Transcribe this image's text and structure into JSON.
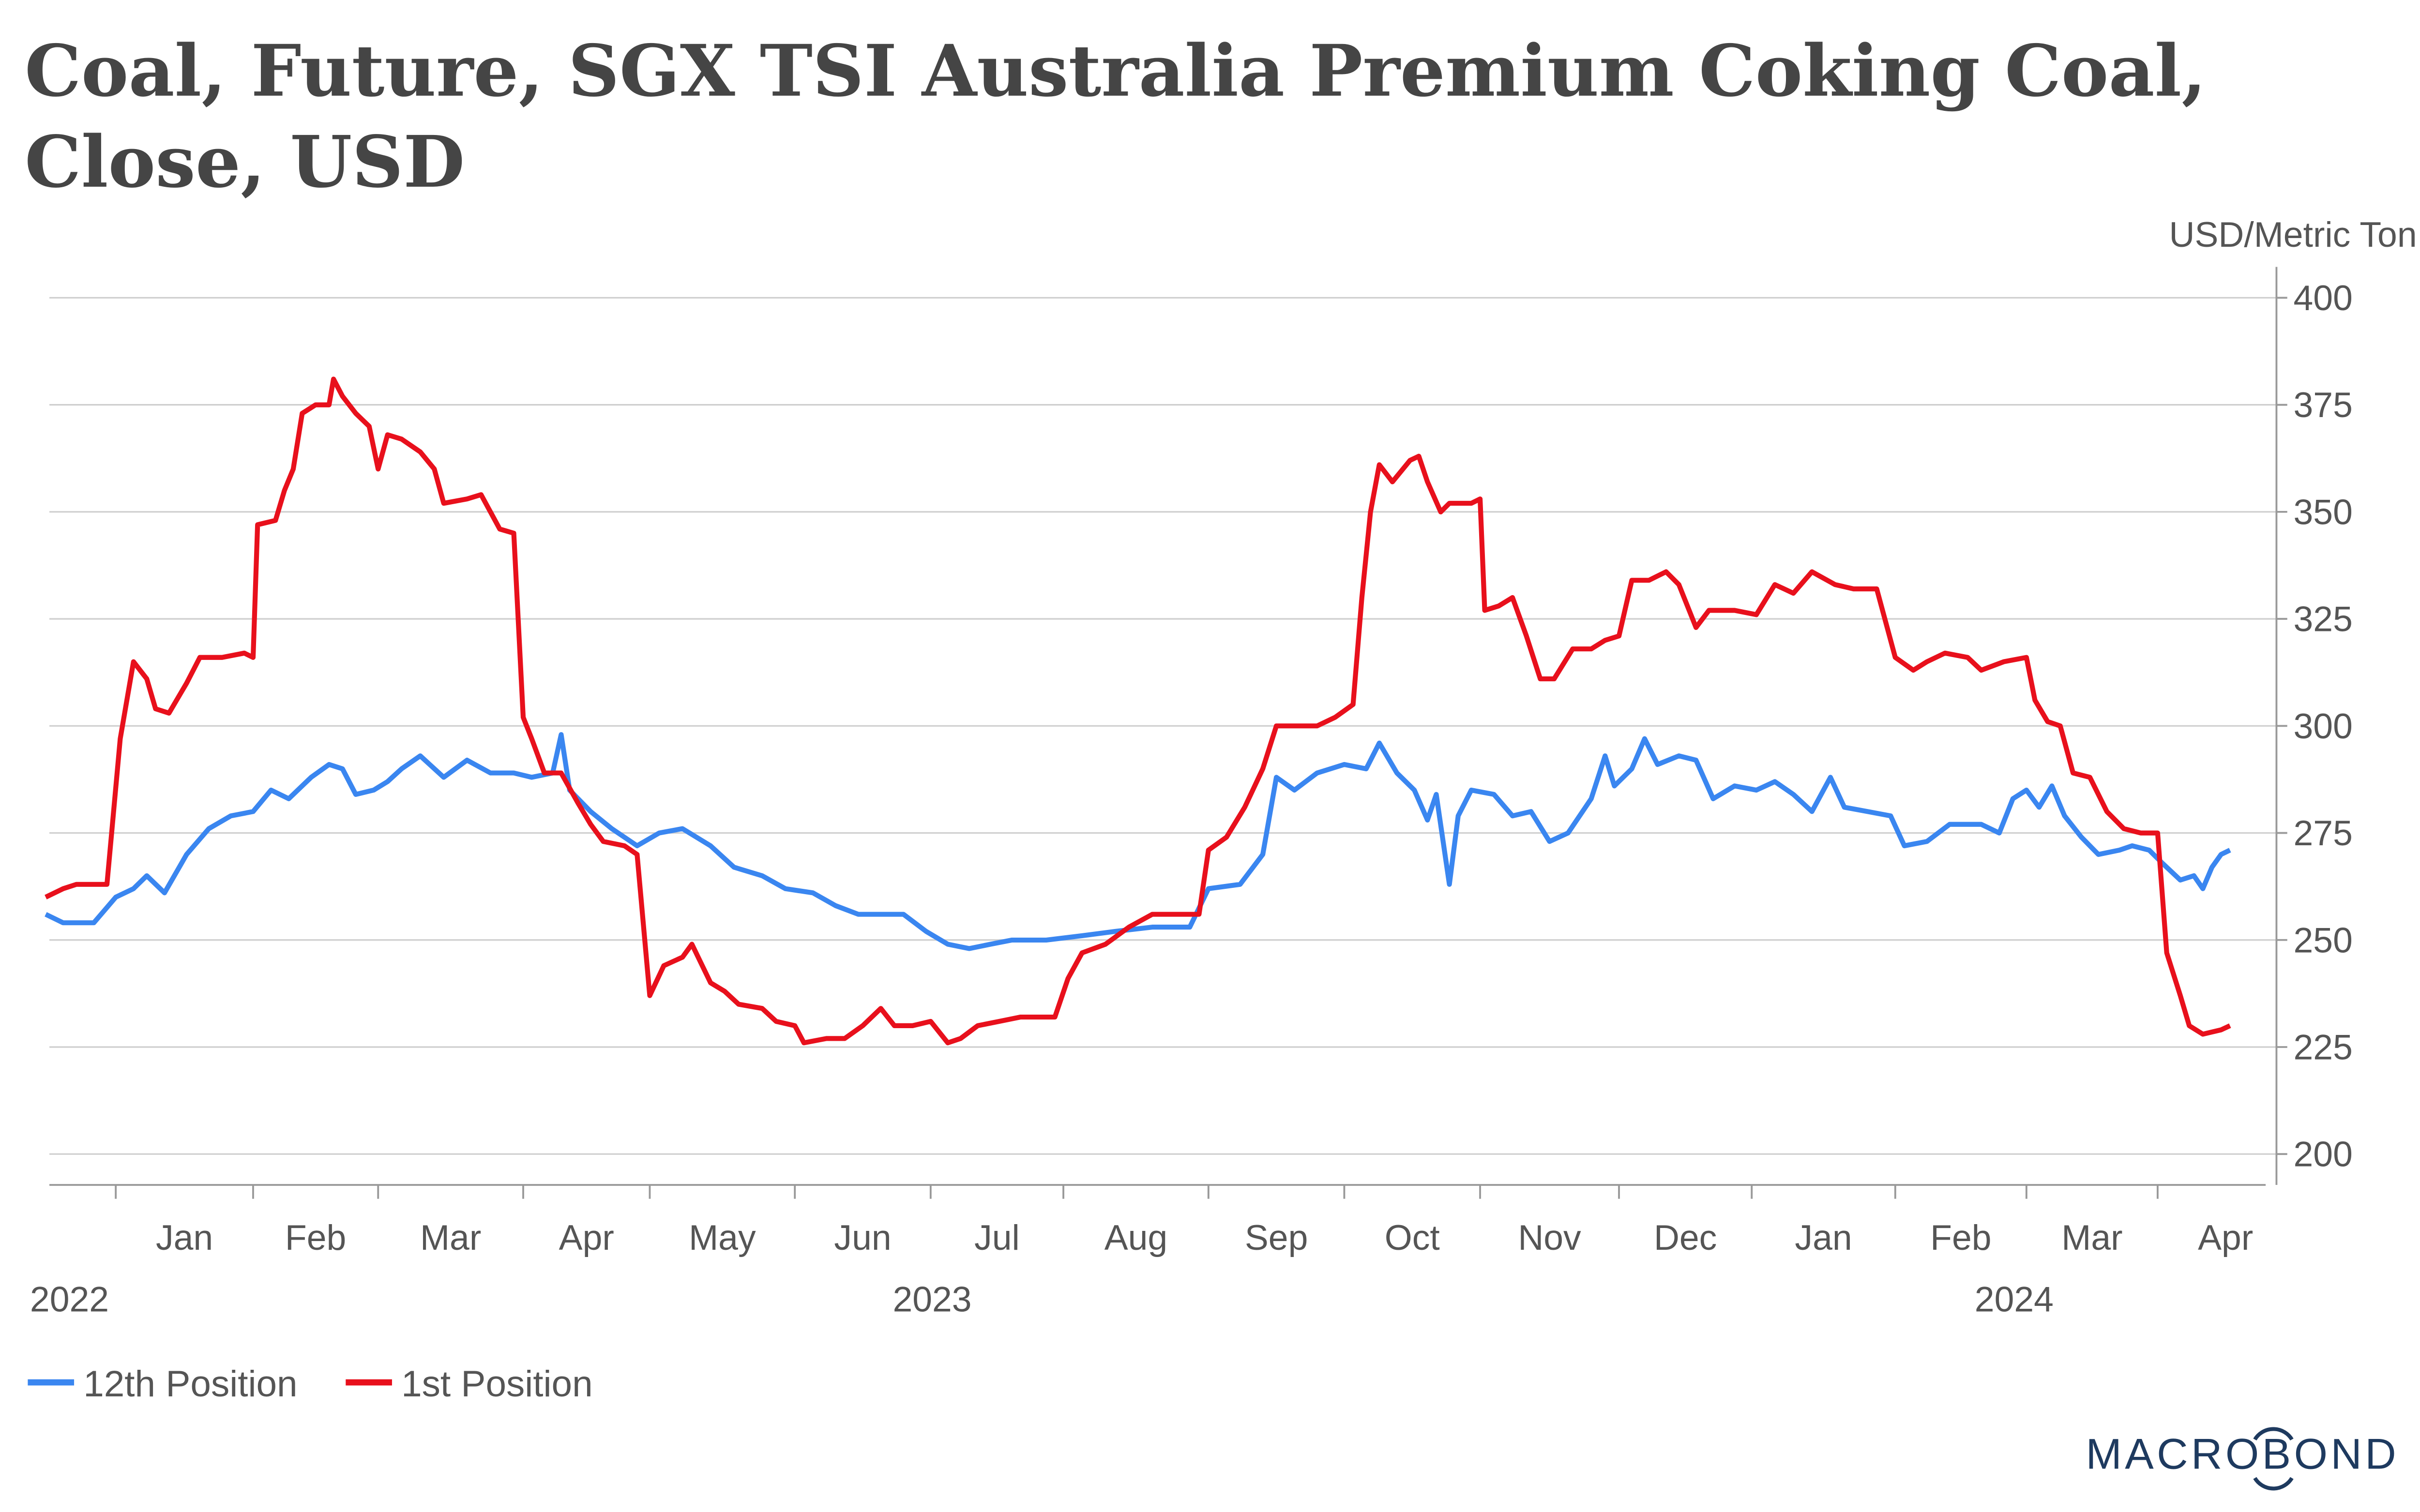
{
  "title_line1": "Coal, Future, SGX TSI Australia Premium Coking Coal,",
  "title_line2": "Close, USD",
  "logo_text": "MACROBOND",
  "chart_data": {
    "type": "line",
    "title": "Coal, Future, SGX TSI Australia Premium Coking Coal, Close, USD",
    "ylabel": "USD/Metric Ton",
    "ylim": [
      200,
      400
    ],
    "yticks": [
      200,
      225,
      250,
      275,
      300,
      325,
      350,
      375,
      400
    ],
    "x_month_labels": [
      "Jan",
      "Feb",
      "Mar",
      "Apr",
      "May",
      "Jun",
      "Jul",
      "Aug",
      "Sep",
      "Oct",
      "Nov",
      "Dec",
      "Jan",
      "Feb",
      "Mar",
      "Apr"
    ],
    "x_year_labels": [
      "2022",
      "2023",
      "2024"
    ],
    "grid": true,
    "legend_position": "bottom-left",
    "series": [
      {
        "name": "12th Position",
        "color": "#3a86f0",
        "points": [
          [
            "2022-12-16",
            256
          ],
          [
            "2022-12-20",
            254
          ],
          [
            "2022-12-27",
            254
          ],
          [
            "2023-01-01",
            260
          ],
          [
            "2023-01-05",
            262
          ],
          [
            "2023-01-08",
            265
          ],
          [
            "2023-01-12",
            261
          ],
          [
            "2023-01-17",
            270
          ],
          [
            "2023-01-22",
            276
          ],
          [
            "2023-01-27",
            279
          ],
          [
            "2023-02-01",
            280
          ],
          [
            "2023-02-05",
            285
          ],
          [
            "2023-02-09",
            283
          ],
          [
            "2023-02-14",
            288
          ],
          [
            "2023-02-18",
            291
          ],
          [
            "2023-02-21",
            290
          ],
          [
            "2023-02-24",
            284
          ],
          [
            "2023-02-28",
            285
          ],
          [
            "2023-03-03",
            287
          ],
          [
            "2023-03-06",
            290
          ],
          [
            "2023-03-10",
            293
          ],
          [
            "2023-03-15",
            288
          ],
          [
            "2023-03-20",
            292
          ],
          [
            "2023-03-25",
            289
          ],
          [
            "2023-03-30",
            289
          ],
          [
            "2023-04-03",
            288
          ],
          [
            "2023-04-08",
            289
          ],
          [
            "2023-04-10",
            298
          ],
          [
            "2023-04-12",
            285
          ],
          [
            "2023-04-17",
            280
          ],
          [
            "2023-04-22",
            276
          ],
          [
            "2023-04-28",
            272
          ],
          [
            "2023-05-03",
            275
          ],
          [
            "2023-05-08",
            276
          ],
          [
            "2023-05-14",
            272
          ],
          [
            "2023-05-19",
            267
          ],
          [
            "2023-05-25",
            265
          ],
          [
            "2023-05-30",
            262
          ],
          [
            "2023-06-05",
            261
          ],
          [
            "2023-06-10",
            258
          ],
          [
            "2023-06-15",
            256
          ],
          [
            "2023-06-25",
            256
          ],
          [
            "2023-06-30",
            252
          ],
          [
            "2023-07-05",
            249
          ],
          [
            "2023-07-10",
            248
          ],
          [
            "2023-07-15",
            249
          ],
          [
            "2023-07-20",
            250
          ],
          [
            "2023-07-28",
            250
          ],
          [
            "2023-08-05",
            251
          ],
          [
            "2023-08-12",
            252
          ],
          [
            "2023-08-20",
            253
          ],
          [
            "2023-08-28",
            253
          ],
          [
            "2023-09-01",
            262
          ],
          [
            "2023-09-08",
            263
          ],
          [
            "2023-09-13",
            270
          ],
          [
            "2023-09-16",
            288
          ],
          [
            "2023-09-20",
            285
          ],
          [
            "2023-09-25",
            289
          ],
          [
            "2023-10-01",
            291
          ],
          [
            "2023-10-06",
            290
          ],
          [
            "2023-10-09",
            296
          ],
          [
            "2023-10-13",
            289
          ],
          [
            "2023-10-17",
            285
          ],
          [
            "2023-10-20",
            278
          ],
          [
            "2023-10-22",
            284
          ],
          [
            "2023-10-25",
            263
          ],
          [
            "2023-10-27",
            279
          ],
          [
            "2023-10-30",
            285
          ],
          [
            "2023-11-04",
            284
          ],
          [
            "2023-11-08",
            279
          ],
          [
            "2023-11-12",
            280
          ],
          [
            "2023-11-16",
            273
          ],
          [
            "2023-11-20",
            275
          ],
          [
            "2023-11-25",
            283
          ],
          [
            "2023-11-28",
            293
          ],
          [
            "2023-11-30",
            286
          ],
          [
            "2023-12-04",
            290
          ],
          [
            "2023-12-07",
            297
          ],
          [
            "2023-12-10",
            291
          ],
          [
            "2023-12-15",
            293
          ],
          [
            "2023-12-19",
            292
          ],
          [
            "2023-12-23",
            283
          ],
          [
            "2023-12-28",
            286
          ],
          [
            "2024-01-02",
            285
          ],
          [
            "2024-01-06",
            287
          ],
          [
            "2024-01-10",
            284
          ],
          [
            "2024-01-14",
            280
          ],
          [
            "2024-01-18",
            288
          ],
          [
            "2024-01-21",
            281
          ],
          [
            "2024-01-26",
            280
          ],
          [
            "2024-01-31",
            279
          ],
          [
            "2024-02-03",
            272
          ],
          [
            "2024-02-08",
            273
          ],
          [
            "2024-02-13",
            277
          ],
          [
            "2024-02-20",
            277
          ],
          [
            "2024-02-24",
            275
          ],
          [
            "2024-02-27",
            283
          ],
          [
            "2024-03-01",
            285
          ],
          [
            "2024-03-04",
            281
          ],
          [
            "2024-03-07",
            286
          ],
          [
            "2024-03-10",
            279
          ],
          [
            "2024-03-14",
            274
          ],
          [
            "2024-03-18",
            270
          ],
          [
            "2024-03-23",
            271
          ],
          [
            "2024-03-26",
            272
          ],
          [
            "2024-03-30",
            271
          ],
          [
            "2024-04-02",
            268
          ],
          [
            "2024-04-06",
            264
          ],
          [
            "2024-04-09",
            265
          ],
          [
            "2024-04-11",
            262
          ],
          [
            "2024-04-13",
            267
          ],
          [
            "2024-04-15",
            270
          ],
          [
            "2024-04-17",
            271
          ]
        ]
      },
      {
        "name": "1st Position",
        "color": "#e8101c",
        "points": [
          [
            "2022-12-16",
            260
          ],
          [
            "2022-12-20",
            262
          ],
          [
            "2022-12-23",
            263
          ],
          [
            "2022-12-30",
            263
          ],
          [
            "2023-01-02",
            297
          ],
          [
            "2023-01-05",
            315
          ],
          [
            "2023-01-08",
            311
          ],
          [
            "2023-01-10",
            304
          ],
          [
            "2023-01-13",
            303
          ],
          [
            "2023-01-17",
            310
          ],
          [
            "2023-01-20",
            316
          ],
          [
            "2023-01-25",
            316
          ],
          [
            "2023-01-30",
            317
          ],
          [
            "2023-02-01",
            316
          ],
          [
            "2023-02-02",
            347
          ],
          [
            "2023-02-06",
            348
          ],
          [
            "2023-02-08",
            355
          ],
          [
            "2023-02-10",
            360
          ],
          [
            "2023-02-12",
            373
          ],
          [
            "2023-02-15",
            375
          ],
          [
            "2023-02-18",
            375
          ],
          [
            "2023-02-19",
            381
          ],
          [
            "2023-02-21",
            377
          ],
          [
            "2023-02-24",
            373
          ],
          [
            "2023-02-27",
            370
          ],
          [
            "2023-03-01",
            360
          ],
          [
            "2023-03-03",
            368
          ],
          [
            "2023-03-06",
            367
          ],
          [
            "2023-03-10",
            364
          ],
          [
            "2023-03-13",
            360
          ],
          [
            "2023-03-15",
            352
          ],
          [
            "2023-03-20",
            353
          ],
          [
            "2023-03-23",
            354
          ],
          [
            "2023-03-27",
            346
          ],
          [
            "2023-03-30",
            345
          ],
          [
            "2023-04-01",
            302
          ],
          [
            "2023-04-03",
            297
          ],
          [
            "2023-04-06",
            289
          ],
          [
            "2023-04-10",
            289
          ],
          [
            "2023-04-14",
            282
          ],
          [
            "2023-04-17",
            277
          ],
          [
            "2023-04-20",
            273
          ],
          [
            "2023-04-25",
            272
          ],
          [
            "2023-04-28",
            270
          ],
          [
            "2023-05-01",
            237
          ],
          [
            "2023-05-04",
            244
          ],
          [
            "2023-05-08",
            246
          ],
          [
            "2023-05-10",
            249
          ],
          [
            "2023-05-14",
            240
          ],
          [
            "2023-05-17",
            238
          ],
          [
            "2023-05-20",
            235
          ],
          [
            "2023-05-25",
            234
          ],
          [
            "2023-05-28",
            231
          ],
          [
            "2023-06-01",
            230
          ],
          [
            "2023-06-03",
            226
          ],
          [
            "2023-06-08",
            227
          ],
          [
            "2023-06-12",
            227
          ],
          [
            "2023-06-16",
            230
          ],
          [
            "2023-06-20",
            234
          ],
          [
            "2023-06-23",
            230
          ],
          [
            "2023-06-27",
            230
          ],
          [
            "2023-07-01",
            231
          ],
          [
            "2023-07-05",
            226
          ],
          [
            "2023-07-08",
            227
          ],
          [
            "2023-07-12",
            230
          ],
          [
            "2023-07-17",
            231
          ],
          [
            "2023-07-22",
            232
          ],
          [
            "2023-07-30",
            232
          ],
          [
            "2023-08-02",
            241
          ],
          [
            "2023-08-05",
            247
          ],
          [
            "2023-08-10",
            249
          ],
          [
            "2023-08-15",
            253
          ],
          [
            "2023-08-20",
            256
          ],
          [
            "2023-08-25",
            256
          ],
          [
            "2023-08-30",
            256
          ],
          [
            "2023-09-01",
            271
          ],
          [
            "2023-09-05",
            274
          ],
          [
            "2023-09-09",
            281
          ],
          [
            "2023-09-13",
            290
          ],
          [
            "2023-09-16",
            300
          ],
          [
            "2023-09-20",
            300
          ],
          [
            "2023-09-25",
            300
          ],
          [
            "2023-09-29",
            302
          ],
          [
            "2023-10-03",
            305
          ],
          [
            "2023-10-05",
            330
          ],
          [
            "2023-10-07",
            350
          ],
          [
            "2023-10-09",
            361
          ],
          [
            "2023-10-12",
            357
          ],
          [
            "2023-10-16",
            362
          ],
          [
            "2023-10-18",
            363
          ],
          [
            "2023-10-20",
            357
          ],
          [
            "2023-10-23",
            350
          ],
          [
            "2023-10-25",
            352
          ],
          [
            "2023-10-30",
            352
          ],
          [
            "2023-11-01",
            353
          ],
          [
            "2023-11-02",
            327
          ],
          [
            "2023-11-05",
            328
          ],
          [
            "2023-11-08",
            330
          ],
          [
            "2023-11-11",
            321
          ],
          [
            "2023-11-14",
            311
          ],
          [
            "2023-11-17",
            311
          ],
          [
            "2023-11-21",
            318
          ],
          [
            "2023-11-25",
            318
          ],
          [
            "2023-11-28",
            320
          ],
          [
            "2023-12-01",
            321
          ],
          [
            "2023-12-04",
            334
          ],
          [
            "2023-12-08",
            334
          ],
          [
            "2023-12-12",
            336
          ],
          [
            "2023-12-15",
            333
          ],
          [
            "2023-12-19",
            323
          ],
          [
            "2023-12-22",
            327
          ],
          [
            "2023-12-28",
            327
          ],
          [
            "2024-01-02",
            326
          ],
          [
            "2024-01-06",
            333
          ],
          [
            "2024-01-10",
            331
          ],
          [
            "2024-01-14",
            336
          ],
          [
            "2024-01-19",
            333
          ],
          [
            "2024-01-23",
            332
          ],
          [
            "2024-01-28",
            332
          ],
          [
            "2024-02-01",
            316
          ],
          [
            "2024-02-05",
            313
          ],
          [
            "2024-02-08",
            315
          ],
          [
            "2024-02-12",
            317
          ],
          [
            "2024-02-17",
            316
          ],
          [
            "2024-02-20",
            313
          ],
          [
            "2024-02-25",
            315
          ],
          [
            "2024-03-01",
            316
          ],
          [
            "2024-03-03",
            306
          ],
          [
            "2024-03-06",
            301
          ],
          [
            "2024-03-09",
            300
          ],
          [
            "2024-03-12",
            289
          ],
          [
            "2024-03-16",
            288
          ],
          [
            "2024-03-20",
            280
          ],
          [
            "2024-03-24",
            276
          ],
          [
            "2024-03-28",
            275
          ],
          [
            "2024-04-01",
            275
          ],
          [
            "2024-04-03",
            247
          ],
          [
            "2024-04-06",
            237
          ],
          [
            "2024-04-08",
            230
          ],
          [
            "2024-04-11",
            228
          ],
          [
            "2024-04-15",
            229
          ],
          [
            "2024-04-17",
            230
          ]
        ]
      }
    ]
  }
}
